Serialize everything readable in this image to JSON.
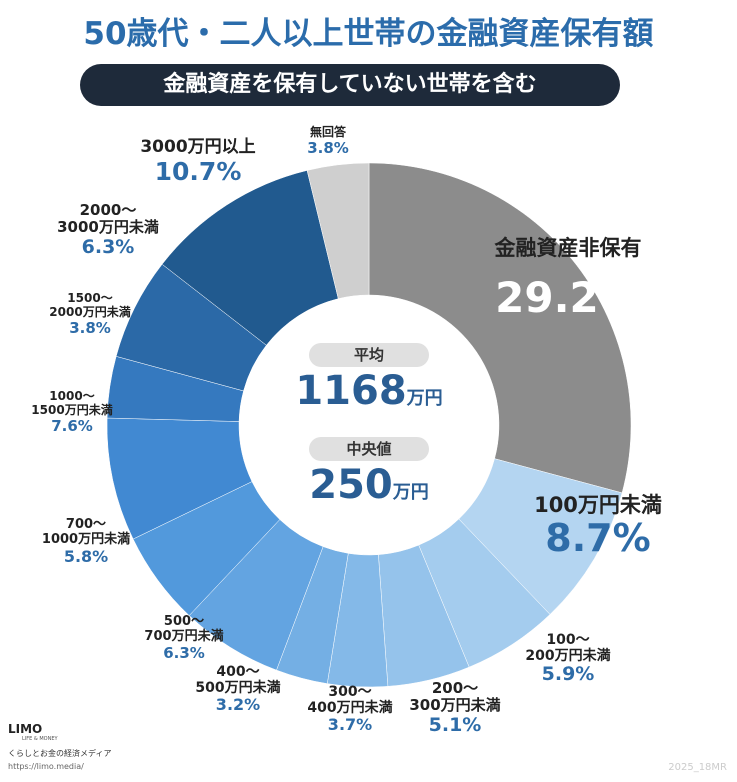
{
  "chart_data": {
    "type": "donut",
    "title": "50歳代・二人以上世帯の金融資産保有額",
    "subtitle": "金融資産を保有していない世帯を含む",
    "categories": [
      "金融資産非保有",
      "100万円未満",
      "100〜\n200万円未満",
      "200〜\n300万円未満",
      "300〜\n400万円未満",
      "400〜\n500万円未満",
      "500〜\n700万円未満",
      "700〜\n1000万円未満",
      "1000〜\n1500万円未満",
      "1500〜\n2000万円未満",
      "2000〜\n3000万円未満",
      "3000万円以上",
      "無回答"
    ],
    "values": [
      29.2,
      8.7,
      5.9,
      5.1,
      3.7,
      3.2,
      6.3,
      5.8,
      7.6,
      3.8,
      6.3,
      10.7,
      3.8
    ],
    "value_labels": [
      "29.2%",
      "8.7%",
      "5.9%",
      "5.1%",
      "3.7%",
      "3.2%",
      "6.3%",
      "5.8%",
      "7.6%",
      "3.8%",
      "6.3%",
      "10.7%",
      "3.8%"
    ],
    "colors": [
      "#8c8c8c",
      "#b4d5f1",
      "#a4ccee",
      "#95c3eb",
      "#84b9e8",
      "#74afe4",
      "#63a4e1",
      "#5299dc",
      "#4189d2",
      "#3579bf",
      "#2b69a7",
      "#215a8f",
      "#cfcfcf"
    ],
    "center": {
      "mean_label": "平均",
      "mean_value": "1168",
      "mean_unit": "万円",
      "median_label": "中央値",
      "median_value": "250",
      "median_unit": "万円"
    }
  },
  "footer": {
    "brand": "LIMO",
    "brand_sub": "LIFE & MONEY",
    "tagline": "くらしとお金の経済メディア",
    "url": "https://limo.media/",
    "code": "2025_18MR"
  }
}
